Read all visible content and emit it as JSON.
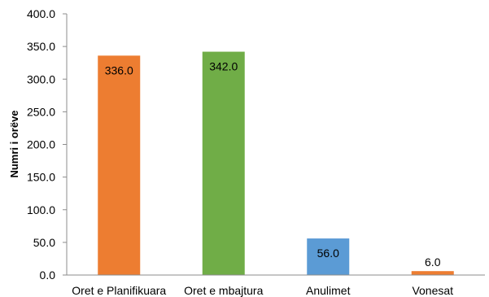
{
  "chart_data": {
    "type": "bar",
    "title": "",
    "xlabel": "",
    "ylabel": "Numri i orëve",
    "ylim": [
      0,
      400
    ],
    "ytick_step": 50,
    "ytick_format_decimals": 1,
    "grid": false,
    "legend": "none",
    "categories": [
      "Oret e Planifikuara",
      "Oret e mbajtura",
      "Anulimet",
      "Vonesat"
    ],
    "values": [
      336.0,
      342.0,
      56.0,
      6.0
    ],
    "data_labels": [
      "336.0",
      "342.0",
      "56.0",
      "6.0"
    ],
    "colors": [
      "#ED7D31",
      "#70AD47",
      "#5B9BD5",
      "#ED7D31"
    ]
  }
}
